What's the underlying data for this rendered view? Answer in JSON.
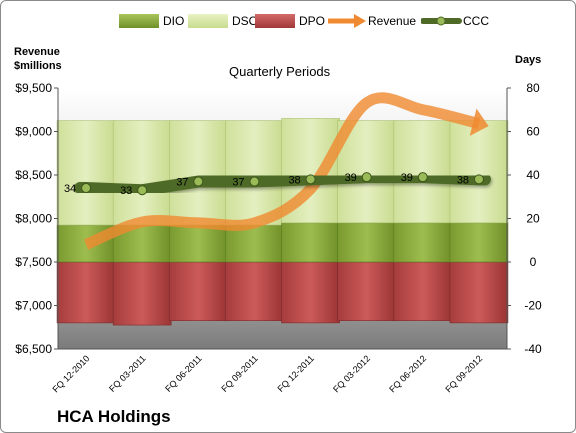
{
  "chart_data": {
    "type": "bar",
    "title": "Quarterly Periods",
    "company": "HCA Holdings",
    "left_axis_title_line1": "Revenue",
    "left_axis_title_line2": "$millions",
    "right_axis_title": "Days",
    "categories": [
      "FQ 12-2010",
      "FQ 03-2011",
      "FQ 06-2011",
      "FQ 09-2011",
      "FQ 12-2011",
      "FQ 03-2012",
      "FQ 06-2012",
      "FQ 09-2012"
    ],
    "y_left": {
      "min": 6500,
      "max": 9500,
      "step": 500,
      "ticks": [
        "$6,500",
        "$7,000",
        "$7,500",
        "$8,000",
        "$8,500",
        "$9,000",
        "$9,500"
      ]
    },
    "y_right": {
      "min": -40,
      "max": 80,
      "step": 20,
      "ticks": [
        "-40",
        "-20",
        "0",
        "20",
        "40",
        "60",
        "80"
      ]
    },
    "series": [
      {
        "name": "DIO",
        "type": "stacked-bar",
        "axis": "right",
        "color": "#8cad3c",
        "values": [
          17,
          17,
          17,
          17,
          18,
          18,
          18,
          18
        ]
      },
      {
        "name": "DSO",
        "type": "stacked-bar",
        "axis": "right",
        "color": "#d8e8a6",
        "values": [
          48,
          48,
          48,
          48,
          48,
          47,
          47,
          47
        ]
      },
      {
        "name": "DPO",
        "type": "stacked-bar-negative",
        "axis": "right",
        "color": "#c05050",
        "values": [
          -28,
          -29,
          -27,
          -27,
          -28,
          -27,
          -27,
          -28
        ]
      },
      {
        "name": "Revenue",
        "type": "line",
        "axis": "left",
        "color": "#f08a30",
        "values": [
          7700,
          7960,
          7950,
          7950,
          8340,
          9330,
          9250,
          9090
        ]
      },
      {
        "name": "CCC",
        "type": "line",
        "axis": "right",
        "color": "#4e6a26",
        "values": [
          34,
          33,
          37,
          37,
          38,
          39,
          39,
          38
        ],
        "labels": [
          "34",
          "33",
          "37",
          "37",
          "38",
          "39",
          "39",
          "38"
        ]
      }
    ],
    "grid": false,
    "legend_position": "top"
  }
}
